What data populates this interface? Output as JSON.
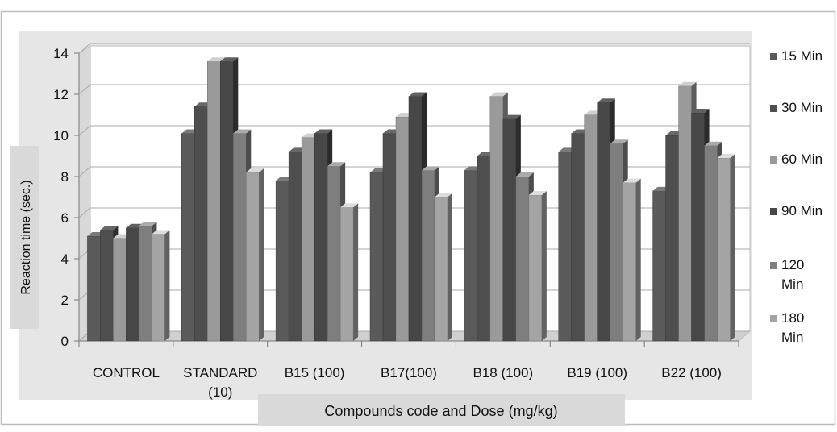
{
  "chart_data": {
    "type": "bar",
    "title": "",
    "xlabel": "Compounds code and Dose (mg/kg)",
    "ylabel": "Reaction time (sec.)",
    "ylim": [
      0,
      14
    ],
    "yticks": [
      "0",
      "2",
      "4",
      "6",
      "8",
      "10",
      "12",
      "14"
    ],
    "grid": true,
    "legend_position": "right",
    "categories": [
      "CONTROL",
      "STANDARD (10)",
      "B15 (100)",
      "B17(100)",
      "B18 (100)",
      "B19 (100)",
      "B22 (100)"
    ],
    "category_lines": [
      [
        "CONTROL"
      ],
      [
        "STANDARD",
        "(10)"
      ],
      [
        "B15 (100)"
      ],
      [
        "B17(100)"
      ],
      [
        "B18 (100)"
      ],
      [
        "B19 (100)"
      ],
      [
        "B22 (100)"
      ]
    ],
    "series": [
      {
        "name": "15 Min",
        "legend_lines": [
          "15 Min"
        ],
        "color": "#5a5a5a",
        "values": [
          5.1,
          10.1,
          7.8,
          8.2,
          8.3,
          9.2,
          7.3
        ]
      },
      {
        "name": "30 Min",
        "legend_lines": [
          "30 Min"
        ],
        "color": "#4e4e4e",
        "values": [
          5.4,
          11.4,
          9.2,
          10.1,
          9.0,
          10.1,
          10.0
        ]
      },
      {
        "name": "60 Min",
        "legend_lines": [
          "60 Min"
        ],
        "color": "#9a9a9a",
        "values": [
          5.0,
          13.6,
          9.9,
          10.9,
          11.9,
          11.0,
          12.4
        ]
      },
      {
        "name": "90 Min",
        "legend_lines": [
          "90 Min"
        ],
        "color": "#474747",
        "values": [
          5.5,
          13.6,
          10.1,
          11.9,
          10.8,
          11.6,
          11.1
        ]
      },
      {
        "name": "120 Min",
        "legend_lines": [
          "120",
          "Min"
        ],
        "color": "#7e7e7e",
        "values": [
          5.6,
          10.1,
          8.5,
          8.3,
          8.0,
          9.6,
          9.5
        ]
      },
      {
        "name": "180 Min",
        "legend_lines": [
          "180",
          "Min"
        ],
        "color": "#a4a4a4",
        "values": [
          5.2,
          8.2,
          6.5,
          7.0,
          7.1,
          7.7,
          8.9
        ]
      }
    ]
  }
}
